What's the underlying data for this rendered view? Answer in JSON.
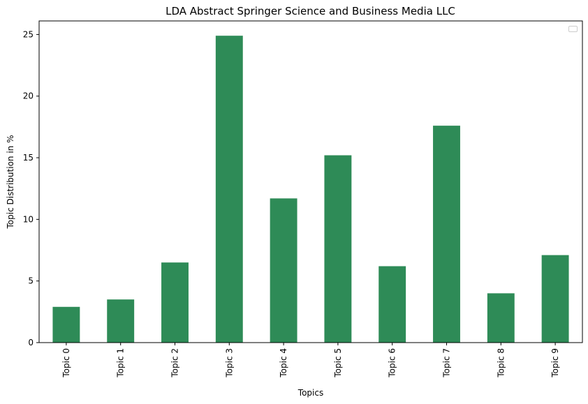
{
  "chart_data": {
    "type": "bar",
    "title": "LDA Abstract Springer Science and Business Media LLC",
    "xlabel": "Topics",
    "ylabel": "Topic Distribution in %",
    "categories": [
      "Topic 0",
      "Topic 1",
      "Topic 2",
      "Topic 3",
      "Topic 4",
      "Topic 5",
      "Topic 6",
      "Topic 7",
      "Topic 8",
      "Topic 9"
    ],
    "values": [
      2.9,
      3.5,
      6.5,
      24.9,
      11.7,
      15.2,
      6.2,
      17.6,
      4.0,
      7.1
    ],
    "ylim": [
      0,
      26.1
    ],
    "yticks": [
      0,
      5,
      10,
      15,
      20,
      25
    ],
    "bar_color": "#2e8b57",
    "legend": {
      "placement": "top-right",
      "entries": []
    },
    "grid": false
  }
}
